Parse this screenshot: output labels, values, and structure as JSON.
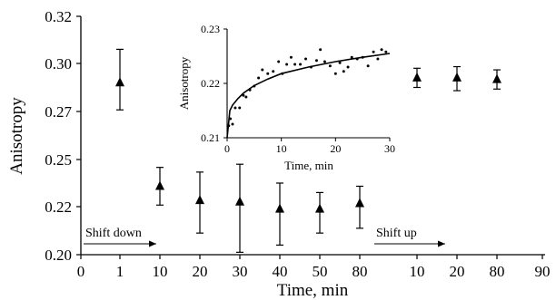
{
  "chart_data": [
    {
      "type": "scatter",
      "xlabel": "Time, min",
      "ylabel": "Anisotropy",
      "x_tick_labels": [
        "0",
        "1",
        "10",
        "20",
        "30",
        "40",
        "50",
        "80",
        "10",
        "20",
        "80",
        "90"
      ],
      "y_tick_labels": [
        "0.20",
        "0.22",
        "0.25",
        "0.27",
        "0.30",
        "0.32"
      ],
      "ylim": [
        0.2,
        0.32
      ],
      "grid": false,
      "legend": "none",
      "series": [
        {
          "marker": "triangle",
          "points": [
            {
              "x_label": "1",
              "phase": "shift down",
              "y": 0.288,
              "err_low": 0.271,
              "err_high": 0.306
            },
            {
              "x_label": "10",
              "phase": "shift down",
              "y": 0.233,
              "err_low": 0.221,
              "err_high": 0.245
            },
            {
              "x_label": "20",
              "phase": "shift down",
              "y": 0.224,
              "err_low": 0.209,
              "err_high": 0.242
            },
            {
              "x_label": "30",
              "phase": "shift down",
              "y": 0.223,
              "err_low": 0.201,
              "err_high": 0.247
            },
            {
              "x_label": "40",
              "phase": "shift down",
              "y": 0.219,
              "err_low": 0.204,
              "err_high": 0.235
            },
            {
              "x_label": "50",
              "phase": "shift down",
              "y": 0.219,
              "err_low": 0.209,
              "err_high": 0.229
            },
            {
              "x_label": "80",
              "phase": "shift down",
              "y": 0.222,
              "err_low": 0.211,
              "err_high": 0.233
            },
            {
              "x_label": "10",
              "phase": "shift up",
              "y": 0.291,
              "err_low": 0.285,
              "err_high": 0.297
            },
            {
              "x_label": "20",
              "phase": "shift up",
              "y": 0.291,
              "err_low": 0.283,
              "err_high": 0.298
            },
            {
              "x_label": "80",
              "phase": "shift up",
              "y": 0.29,
              "err_low": 0.284,
              "err_high": 0.296
            }
          ]
        }
      ],
      "annotations": [
        {
          "text": "Shift down",
          "arrow": "right"
        },
        {
          "text": "Shift up",
          "arrow": "right"
        }
      ]
    },
    {
      "type": "scatter",
      "inset": true,
      "xlabel": "Time, min",
      "ylabel": "Anisotropy",
      "xlim": [
        0,
        30
      ],
      "ylim": [
        0.21,
        0.23
      ],
      "x_ticks": [
        0,
        10,
        20,
        30
      ],
      "y_ticks": [
        0.21,
        0.22,
        0.23
      ],
      "points": [
        [
          0.3,
          0.2122
        ],
        [
          0.6,
          0.2135
        ],
        [
          1.0,
          0.2125
        ],
        [
          1.5,
          0.2155
        ],
        [
          2.3,
          0.2155
        ],
        [
          3.0,
          0.2178
        ],
        [
          3.5,
          0.2175
        ],
        [
          4.2,
          0.2188
        ],
        [
          5.0,
          0.2195
        ],
        [
          5.8,
          0.221
        ],
        [
          6.5,
          0.2225
        ],
        [
          7.5,
          0.2218
        ],
        [
          8.5,
          0.2222
        ],
        [
          9.5,
          0.224
        ],
        [
          10.2,
          0.2218
        ],
        [
          11.0,
          0.2235
        ],
        [
          11.8,
          0.2248
        ],
        [
          12.5,
          0.2235
        ],
        [
          13.5,
          0.2235
        ],
        [
          14.5,
          0.2245
        ],
        [
          15.5,
          0.223
        ],
        [
          16.5,
          0.2242
        ],
        [
          17.2,
          0.2262
        ],
        [
          18.0,
          0.224
        ],
        [
          19.0,
          0.2232
        ],
        [
          20.0,
          0.2218
        ],
        [
          20.8,
          0.2238
        ],
        [
          21.5,
          0.2222
        ],
        [
          22.3,
          0.223
        ],
        [
          23.0,
          0.2248
        ],
        [
          24.0,
          0.2245
        ],
        [
          25.0,
          0.2248
        ],
        [
          26.0,
          0.2232
        ],
        [
          27.0,
          0.2258
        ],
        [
          27.8,
          0.2245
        ],
        [
          28.5,
          0.2262
        ],
        [
          29.3,
          0.2258
        ]
      ],
      "fit_curve": [
        [
          0,
          0.21
        ],
        [
          0.5,
          0.215
        ],
        [
          1,
          0.216
        ],
        [
          2,
          0.2172
        ],
        [
          3,
          0.2182
        ],
        [
          5,
          0.2196
        ],
        [
          7.5,
          0.2208
        ],
        [
          10,
          0.2218
        ],
        [
          15,
          0.223
        ],
        [
          20,
          0.224
        ],
        [
          25,
          0.2248
        ],
        [
          30,
          0.2255
        ]
      ]
    }
  ]
}
